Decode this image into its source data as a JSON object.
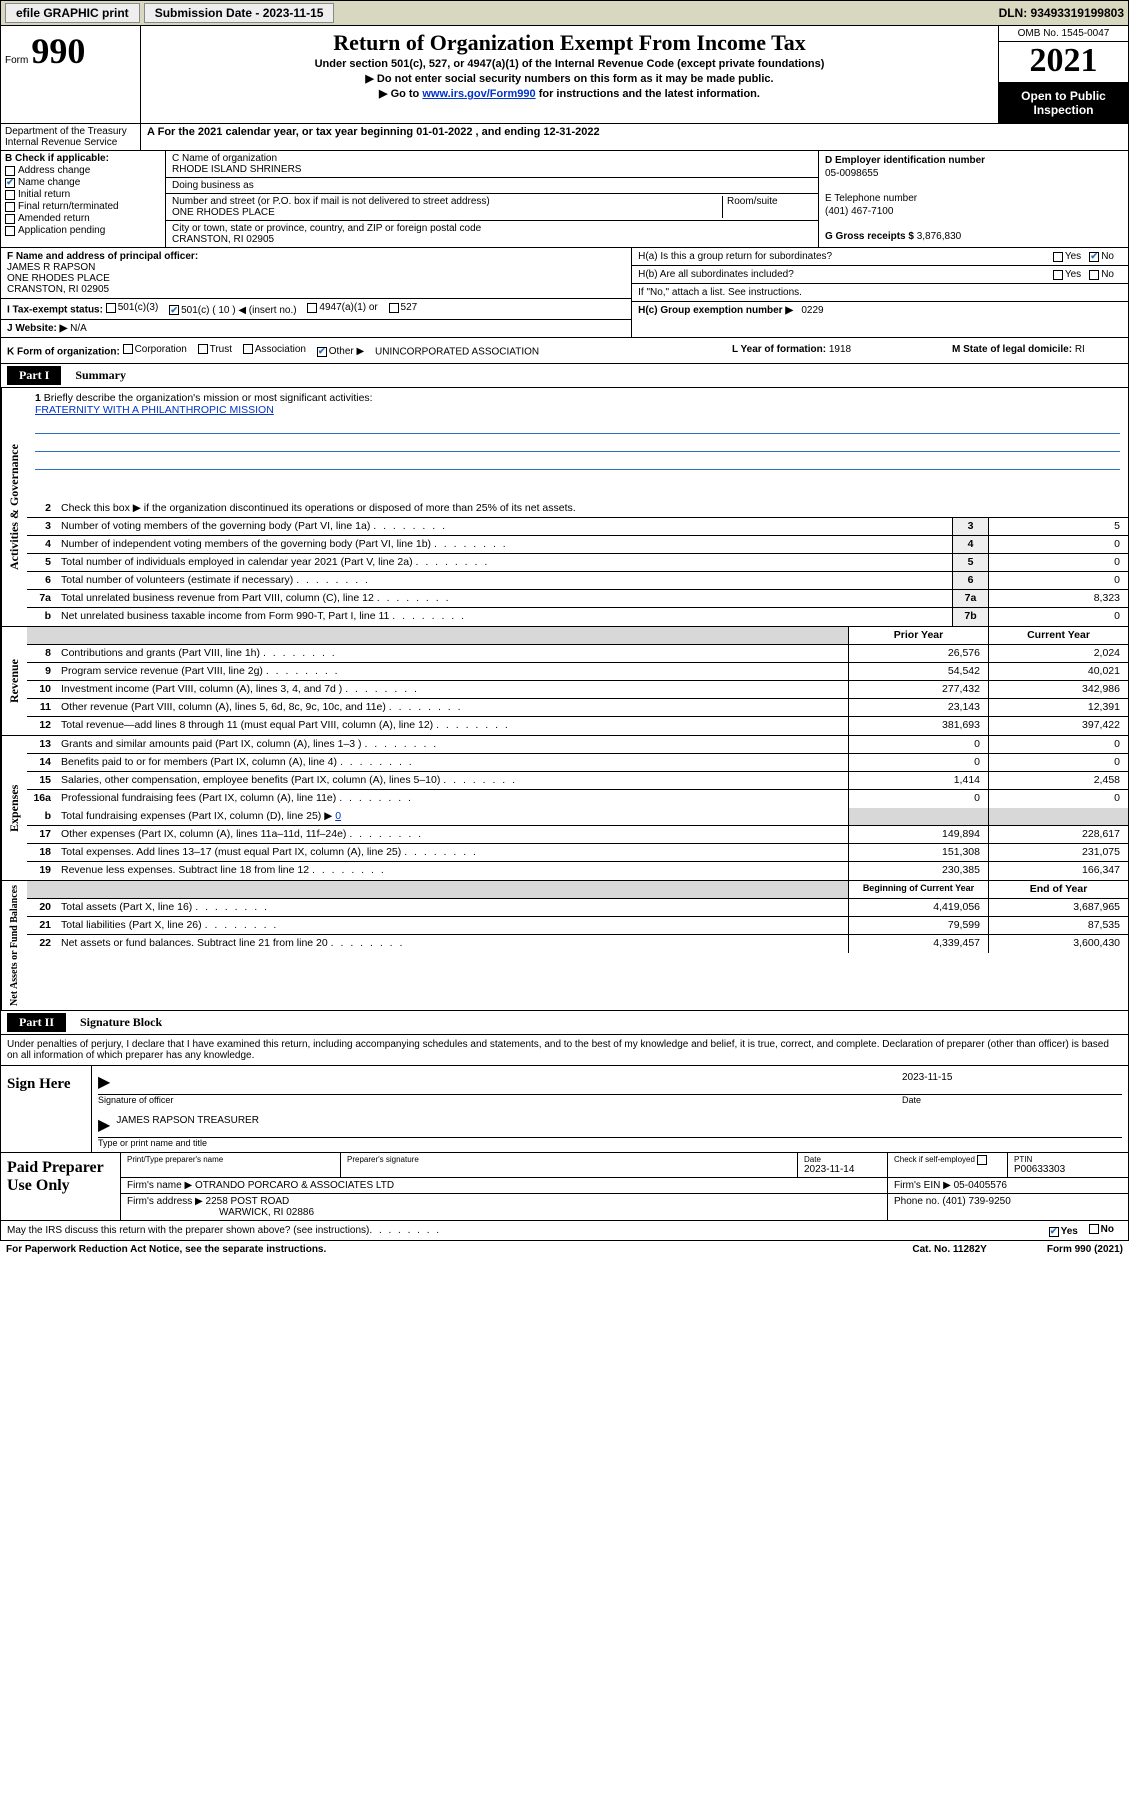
{
  "topbar": {
    "efile": "efile GRAPHIC print",
    "sub_label": "Submission Date - 2023-11-15",
    "dln": "DLN: 93493319199803"
  },
  "header": {
    "form_label": "Form",
    "form_num": "990",
    "title": "Return of Organization Exempt From Income Tax",
    "sub1": "Under section 501(c), 527, or 4947(a)(1) of the Internal Revenue Code (except private foundations)",
    "sub2": "▶ Do not enter social security numbers on this form as it may be made public.",
    "sub3_pre": "▶ Go to ",
    "sub3_link": "www.irs.gov/Form990",
    "sub3_post": " for instructions and the latest information.",
    "omb": "OMB No. 1545-0047",
    "year": "2021",
    "inspect": "Open to Public Inspection",
    "dept": "Department of the Treasury",
    "irs": "Internal Revenue Service"
  },
  "period": {
    "line": "For the 2021 calendar year, or tax year beginning 01-01-2022    , and ending 12-31-2022"
  },
  "boxB": {
    "title": "B Check if applicable:",
    "items": [
      "Address change",
      "Name change",
      "Initial return",
      "Final return/terminated",
      "Amended return",
      "Application pending"
    ],
    "checked_index": 1
  },
  "boxC": {
    "name_label": "C Name of organization",
    "name": "RHODE ISLAND SHRINERS",
    "dba_label": "Doing business as",
    "dba": "",
    "addr_label": "Number and street (or P.O. box if mail is not delivered to street address)",
    "room_label": "Room/suite",
    "addr": "ONE RHODES PLACE",
    "city_label": "City or town, state or province, country, and ZIP or foreign postal code",
    "city": "CRANSTON, RI  02905"
  },
  "boxD": {
    "ein_label": "D Employer identification number",
    "ein": "05-0098655",
    "phone_label": "E Telephone number",
    "phone": "(401) 467-7100",
    "gross_label": "G Gross receipts $",
    "gross": "3,876,830"
  },
  "rowF": {
    "f_label": "F  Name and address of principal officer:",
    "f_name": "JAMES R RAPSON",
    "f_addr1": "ONE RHODES PLACE",
    "f_addr2": "CRANSTON, RI  02905",
    "i_label": "I   Tax-exempt status:",
    "i_501c3": "501(c)(3)",
    "i_501c": "501(c) ( 10 ) ◀ (insert no.)",
    "i_4947": "4947(a)(1) or",
    "i_527": "527",
    "j_label": "J   Website: ▶",
    "j_val": "N/A",
    "ha_label": "H(a)  Is this a group return for subordinates?",
    "hb_label": "H(b)  Are all subordinates included?",
    "hb_note": "If \"No,\" attach a list. See instructions.",
    "hc_label": "H(c)  Group exemption number ▶",
    "hc_val": "0229",
    "yes": "Yes",
    "no": "No"
  },
  "rowK": {
    "k_label": "K Form of organization:",
    "k_opts": [
      "Corporation",
      "Trust",
      "Association",
      "Other ▶"
    ],
    "k_other": "UNINCORPORATED ASSOCIATION",
    "l_label": "L Year of formation: ",
    "l_val": "1918",
    "m_label": "M State of legal domicile: ",
    "m_val": "RI"
  },
  "part1": {
    "label": "Part I",
    "title": "Summary",
    "rot1": "Activities & Governance",
    "rot2": "Revenue",
    "rot3": "Expenses",
    "rot4": "Net Assets or Fund Balances",
    "line1": "Briefly describe the organization's mission or most significant activities:",
    "mission": "FRATERNITY WITH A PHILANTHROPIC MISSION",
    "line2": "Check this box ▶       if the organization discontinued its operations or disposed of more than 25% of its net assets.",
    "lines_gov": [
      {
        "n": "3",
        "d": "Number of voting members of the governing body (Part VI, line 1a)",
        "box": "3",
        "v": "5"
      },
      {
        "n": "4",
        "d": "Number of independent voting members of the governing body (Part VI, line 1b)",
        "box": "4",
        "v": "0"
      },
      {
        "n": "5",
        "d": "Total number of individuals employed in calendar year 2021 (Part V, line 2a)",
        "box": "5",
        "v": "0"
      },
      {
        "n": "6",
        "d": "Total number of volunteers (estimate if necessary)",
        "box": "6",
        "v": "0"
      },
      {
        "n": "7a",
        "d": "Total unrelated business revenue from Part VIII, column (C), line 12",
        "box": "7a",
        "v": "8,323"
      },
      {
        "n": "b",
        "d": "Net unrelated business taxable income from Form 990-T, Part I, line 11",
        "box": "7b",
        "v": "0"
      }
    ],
    "hdr_prior": "Prior Year",
    "hdr_current": "Current Year",
    "lines_rev": [
      {
        "n": "8",
        "d": "Contributions and grants (Part VIII, line 1h)",
        "p": "26,576",
        "c": "2,024"
      },
      {
        "n": "9",
        "d": "Program service revenue (Part VIII, line 2g)",
        "p": "54,542",
        "c": "40,021"
      },
      {
        "n": "10",
        "d": "Investment income (Part VIII, column (A), lines 3, 4, and 7d )",
        "p": "277,432",
        "c": "342,986"
      },
      {
        "n": "11",
        "d": "Other revenue (Part VIII, column (A), lines 5, 6d, 8c, 9c, 10c, and 11e)",
        "p": "23,143",
        "c": "12,391"
      },
      {
        "n": "12",
        "d": "Total revenue—add lines 8 through 11 (must equal Part VIII, column (A), line 12)",
        "p": "381,693",
        "c": "397,422"
      }
    ],
    "lines_exp": [
      {
        "n": "13",
        "d": "Grants and similar amounts paid (Part IX, column (A), lines 1–3 )",
        "p": "0",
        "c": "0"
      },
      {
        "n": "14",
        "d": "Benefits paid to or for members (Part IX, column (A), line 4)",
        "p": "0",
        "c": "0"
      },
      {
        "n": "15",
        "d": "Salaries, other compensation, employee benefits (Part IX, column (A), lines 5–10)",
        "p": "1,414",
        "c": "2,458"
      },
      {
        "n": "16a",
        "d": "Professional fundraising fees (Part IX, column (A), line 11e)",
        "p": "0",
        "c": "0"
      }
    ],
    "line16b_pre": "Total fundraising expenses (Part IX, column (D), line 25) ▶",
    "line16b_val": "0",
    "lines_exp2": [
      {
        "n": "17",
        "d": "Other expenses (Part IX, column (A), lines 11a–11d, 11f–24e)",
        "p": "149,894",
        "c": "228,617"
      },
      {
        "n": "18",
        "d": "Total expenses. Add lines 13–17 (must equal Part IX, column (A), line 25)",
        "p": "151,308",
        "c": "231,075"
      },
      {
        "n": "19",
        "d": "Revenue less expenses. Subtract line 18 from line 12",
        "p": "230,385",
        "c": "166,347"
      }
    ],
    "hdr_begin": "Beginning of Current Year",
    "hdr_end": "End of Year",
    "lines_net": [
      {
        "n": "20",
        "d": "Total assets (Part X, line 16)",
        "p": "4,419,056",
        "c": "3,687,965"
      },
      {
        "n": "21",
        "d": "Total liabilities (Part X, line 26)",
        "p": "79,599",
        "c": "87,535"
      },
      {
        "n": "22",
        "d": "Net assets or fund balances. Subtract line 21 from line 20",
        "p": "4,339,457",
        "c": "3,600,430"
      }
    ]
  },
  "part2": {
    "label": "Part II",
    "title": "Signature Block",
    "intro": "Under penalties of perjury, I declare that I have examined this return, including accompanying schedules and statements, and to the best of my knowledge and belief, it is true, correct, and complete. Declaration of preparer (other than officer) is based on all information of which preparer has any knowledge.",
    "sign_here": "Sign Here",
    "sig_officer": "Signature of officer",
    "sig_date_label": "Date",
    "sig_date": "2023-11-15",
    "name_title_label": "Type or print name and title",
    "name_title": "JAMES RAPSON  TREASURER",
    "paid_label": "Paid Preparer Use Only",
    "prep_name_label": "Print/Type preparer's name",
    "prep_sig_label": "Preparer's signature",
    "prep_date_label": "Date",
    "prep_date": "2023-11-14",
    "prep_self_label": "Check        if self-employed",
    "ptin_label": "PTIN",
    "ptin": "P00633303",
    "firm_name_label": "Firm's name     ▶",
    "firm_name": "OTRANDO PORCARO & ASSOCIATES LTD",
    "firm_ein_label": "Firm's EIN ▶",
    "firm_ein": "05-0405576",
    "firm_addr_label": "Firm's address ▶",
    "firm_addr1": "2258 POST ROAD",
    "firm_addr2": "WARWICK, RI 02886",
    "firm_phone_label": "Phone no.",
    "firm_phone": "(401) 739-9250",
    "discuss": "May the IRS discuss this return with the preparer shown above? (see instructions)",
    "paperwork": "For Paperwork Reduction Act Notice, see the separate instructions.",
    "cat": "Cat. No. 11282Y",
    "form_foot": "Form 990 (2021)"
  },
  "colors": {
    "link": "#0033cc",
    "check": "#2b70ba",
    "topbar_bg": "#d8d8c0"
  }
}
